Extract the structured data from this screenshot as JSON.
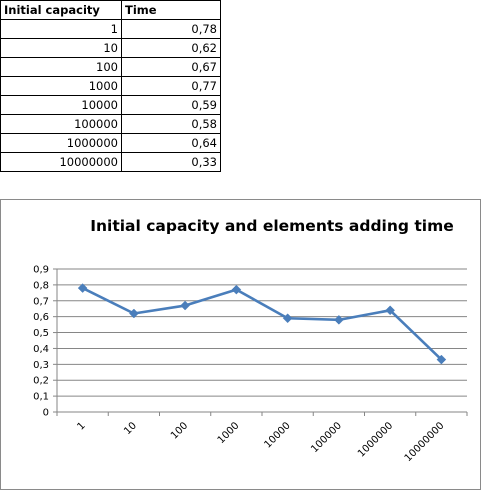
{
  "table": {
    "headers": [
      "Initial capacity",
      "Time"
    ],
    "rows": [
      [
        "1",
        "0,78"
      ],
      [
        "10",
        "0,62"
      ],
      [
        "100",
        "0,67"
      ],
      [
        "1000",
        "0,77"
      ],
      [
        "10000",
        "0,59"
      ],
      [
        "100000",
        "0,58"
      ],
      [
        "1000000",
        "0,64"
      ],
      [
        "10000000",
        "0,33"
      ]
    ]
  },
  "chart_data": {
    "type": "line",
    "title": "Initial capacity and elements adding time",
    "categories": [
      "1",
      "10",
      "100",
      "1000",
      "10000",
      "100000",
      "1000000",
      "10000000"
    ],
    "series": [
      {
        "values": [
          0.78,
          0.62,
          0.67,
          0.77,
          0.59,
          0.58,
          0.64,
          0.33
        ]
      }
    ],
    "y_ticks": [
      "0",
      "0,1",
      "0,2",
      "0,3",
      "0,4",
      "0,5",
      "0,6",
      "0,7",
      "0,8",
      "0,9"
    ],
    "ylim": [
      0,
      0.9
    ],
    "grid": true,
    "legend": "none",
    "marker": "diamond",
    "line_color": "#4a7ebb",
    "grid_color": "#868686"
  }
}
